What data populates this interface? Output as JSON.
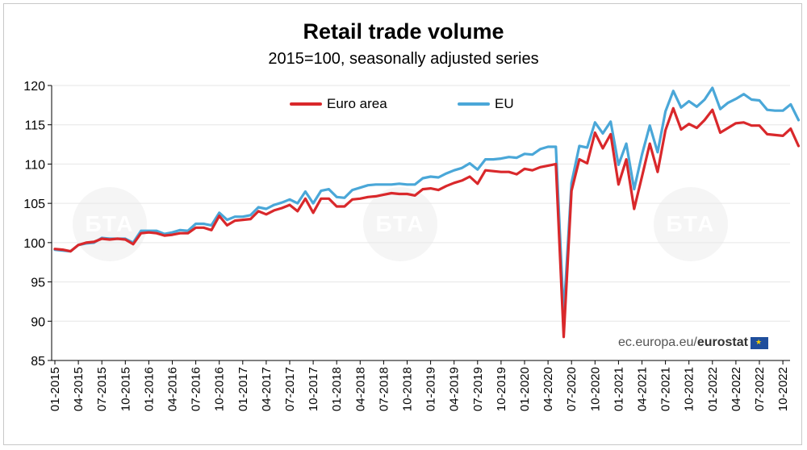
{
  "watermark": {
    "text": "БТА"
  },
  "source": {
    "prefix": "ec.europa.eu/",
    "brand": "eurostat"
  },
  "chart_data": {
    "type": "line",
    "title": "Retail trade volume",
    "subtitle": "2015=100, seasonally adjusted series",
    "ylim": [
      85,
      120
    ],
    "yticks": [
      85,
      90,
      95,
      100,
      105,
      110,
      115,
      120
    ],
    "xticks": [
      "01-2015",
      "04-2015",
      "07-2015",
      "10-2015",
      "01-2016",
      "04-2016",
      "07-2016",
      "10-2016",
      "01-2017",
      "04-2017",
      "07-2017",
      "10-2017",
      "01-2018",
      "04-2018",
      "07-2018",
      "10-2018",
      "01-2019",
      "04-2019",
      "07-2019",
      "10-2019",
      "01-2020",
      "04-2020",
      "07-2020",
      "10-2020",
      "01-2021",
      "04-2021",
      "07-2021",
      "10-2021",
      "01-2022",
      "04-2022",
      "07-2022",
      "10-2022"
    ],
    "legend_position": "top",
    "series": [
      {
        "name": "Euro area",
        "color": "#d9282b",
        "values": [
          99.2,
          99.1,
          98.9,
          99.7,
          100.0,
          100.1,
          100.5,
          100.4,
          100.5,
          100.4,
          99.8,
          101.2,
          101.3,
          101.2,
          100.9,
          101.0,
          101.2,
          101.2,
          101.9,
          101.9,
          101.6,
          103.4,
          102.2,
          102.8,
          102.9,
          103.0,
          104.0,
          103.6,
          104.1,
          104.4,
          104.8,
          104.0,
          105.6,
          103.8,
          105.6,
          105.6,
          104.6,
          104.6,
          105.5,
          105.6,
          105.8,
          105.9,
          106.1,
          106.3,
          106.2,
          106.2,
          106.0,
          106.8,
          106.9,
          106.7,
          107.2,
          107.6,
          107.9,
          108.4,
          107.5,
          109.2,
          109.1,
          109.0,
          109.0,
          108.7,
          109.4,
          109.2,
          109.6,
          109.8,
          110.0,
          88.0,
          106.6,
          110.6,
          110.1,
          114.0,
          112.0,
          113.8,
          107.4,
          110.6,
          104.3,
          108.4,
          112.6,
          109.0,
          114.3,
          117.1,
          114.4,
          115.1,
          114.6,
          115.6,
          116.9,
          114.0,
          114.6,
          115.2,
          115.3,
          114.9,
          114.9,
          113.8,
          113.7,
          113.6,
          114.5,
          112.3
        ]
      },
      {
        "name": "EU",
        "color": "#4aa7d8",
        "values": [
          99.1,
          99.0,
          98.9,
          99.7,
          99.9,
          100.0,
          100.6,
          100.5,
          100.5,
          100.5,
          100.0,
          101.5,
          101.5,
          101.5,
          101.1,
          101.3,
          101.6,
          101.5,
          102.4,
          102.4,
          102.2,
          103.8,
          102.9,
          103.3,
          103.3,
          103.5,
          104.5,
          104.3,
          104.8,
          105.1,
          105.5,
          105.0,
          106.5,
          105.0,
          106.6,
          106.8,
          105.8,
          105.7,
          106.7,
          107.0,
          107.3,
          107.4,
          107.4,
          107.4,
          107.5,
          107.4,
          107.4,
          108.2,
          108.4,
          108.3,
          108.8,
          109.2,
          109.5,
          110.1,
          109.3,
          110.6,
          110.6,
          110.7,
          110.9,
          110.8,
          111.3,
          111.2,
          111.9,
          112.2,
          112.2,
          90.8,
          107.6,
          112.3,
          112.1,
          115.3,
          113.9,
          115.4,
          109.9,
          112.6,
          106.8,
          111.2,
          114.9,
          111.5,
          116.7,
          119.3,
          117.2,
          118.0,
          117.3,
          118.2,
          119.7,
          117.0,
          117.8,
          118.3,
          118.9,
          118.2,
          118.1,
          116.9,
          116.8,
          116.8,
          117.6,
          115.6
        ]
      }
    ]
  }
}
